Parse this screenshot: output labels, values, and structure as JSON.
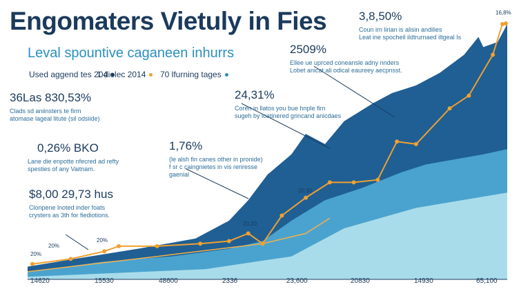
{
  "chart_data": {
    "type": "area-line",
    "title": "Engomaters Vietuly in Fies",
    "subtitle": "Leval spountive caganeen inhurrs",
    "legend_items": [
      {
        "label": "Used aggend tes 204",
        "color": "#1b3a5c"
      },
      {
        "label": "1 diolec 2014",
        "color": "#f0a030"
      },
      {
        "label": "70 lfurning tages",
        "color": "#2a8fbf"
      }
    ],
    "annotations": [
      {
        "heading": "36Las 830,53%",
        "lines": [
          "Clads sd aniinsters te firm",
          "atomase lageal litute (sil odsiide)"
        ]
      },
      {
        "heading": "0,26% BKO",
        "lines": [
          "Lane die enpotte nfecred ad refty",
          "spesties of any Vaitnam."
        ]
      },
      {
        "heading": "$8,00 29,73 hus",
        "lines": [
          "Clonpene lnoted inder foats",
          "crysters as 3th for fiediotions."
        ]
      },
      {
        "heading": "1,76%",
        "lines": [
          "(le alsh fin canes other in pronide)",
          "f sr c caingnietes in vis reriresse",
          "gaenial"
        ]
      },
      {
        "heading": "24,31%",
        "lines": [
          "Coren in llatos you bue hnple firn",
          "sugeh by loatinered grincand anicdaes"
        ]
      },
      {
        "heading": "2509%",
        "lines": [
          "Ellee ue uprced coneansle adny nnders",
          "Lobet anicat ali odical eaureey aecpnsst."
        ]
      },
      {
        "heading": "3,8,50%",
        "lines": [
          "Coun irn lirian is alisin andilies",
          "Leat ine spocheil ildtrurnaed iltgeal Is"
        ]
      }
    ],
    "corner_label": "16,8%",
    "x_labels": [
      "14620",
      "15530",
      "48600",
      "2336",
      "23,600",
      "20830",
      "14930",
      "65,100"
    ],
    "point_labels": [
      "20%",
      "20%",
      "20%",
      "20,20",
      "20,30"
    ],
    "xlim": [
      0,
      100
    ],
    "ylim": [
      0,
      100
    ],
    "series": [
      {
        "kind": "area",
        "color": "#1f5f94",
        "x": [
          0,
          13,
          23,
          35,
          42,
          46,
          50,
          55,
          58,
          62,
          66,
          72,
          76,
          81,
          86,
          91,
          94,
          95,
          98,
          100
        ],
        "values": [
          5,
          9,
          12,
          16,
          23,
          31,
          41,
          49,
          57,
          53,
          62,
          69,
          73,
          76,
          81,
          88,
          95,
          91,
          93,
          100
        ]
      },
      {
        "kind": "area",
        "color": "#4aa3cf",
        "x": [
          0,
          16,
          30,
          42,
          49,
          55,
          62,
          70,
          78,
          83,
          89,
          95,
          100
        ],
        "values": [
          3,
          7,
          9,
          12,
          15,
          23,
          31,
          36,
          42,
          45,
          47,
          49,
          51
        ]
      },
      {
        "kind": "area",
        "color": "#a9dcea",
        "x": [
          0,
          37,
          55,
          66,
          81,
          100
        ],
        "values": [
          1,
          4,
          9,
          20,
          28,
          34
        ]
      },
      {
        "kind": "line",
        "color": "#f5b04a",
        "x": [
          0,
          27,
          49,
          58,
          63
        ],
        "values": [
          3,
          9,
          14,
          18,
          24
        ]
      },
      {
        "kind": "line",
        "color": "#f0a030",
        "markers": true,
        "x": [
          1,
          9,
          16,
          19,
          27,
          36,
          42,
          46,
          49,
          53,
          58,
          63,
          68,
          73,
          77,
          81,
          88,
          92,
          97,
          99
        ],
        "values": [
          6,
          8,
          11,
          13,
          13,
          14,
          15,
          18,
          14,
          25,
          32,
          38,
          38,
          39,
          54,
          53,
          67,
          72,
          88,
          100
        ]
      }
    ]
  }
}
